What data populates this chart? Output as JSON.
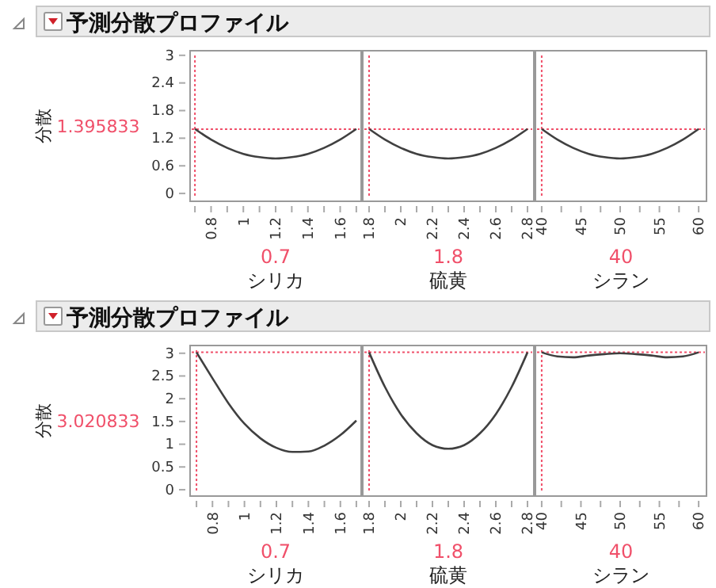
{
  "chart_data": [
    {
      "type": "line",
      "title": "予測分散プロファイル",
      "ylabel": "分散",
      "xlabel": "シリカ",
      "x": [
        0.7,
        0.8,
        0.9,
        1.0,
        1.1,
        1.2,
        1.3,
        1.4,
        1.5,
        1.6,
        1.7
      ],
      "values": [
        1.4,
        1.17,
        0.99,
        0.86,
        0.79,
        0.76,
        0.79,
        0.86,
        0.99,
        1.17,
        1.4
      ],
      "color": "#404040",
      "xlim": [
        0.67,
        1.73
      ],
      "xticks": [
        {
          "value": 0.7,
          "label": null
        },
        0.8,
        {
          "value": 0.9,
          "label": null
        },
        1,
        {
          "value": 1.1,
          "label": null
        },
        1.2,
        {
          "value": 1.3,
          "label": null
        },
        1.4,
        {
          "value": 1.5,
          "label": null
        },
        1.6,
        {
          "value": 1.7,
          "label": null
        }
      ],
      "ylim": [
        -0.17,
        3.1
      ],
      "yticks": [
        0,
        0.6,
        1.2,
        1.8,
        2.4,
        3
      ],
      "ref_lines": [
        {
          "axis": "x",
          "value": 0.7,
          "label": "0.7",
          "color": "#f0506a",
          "line_style": "dotted"
        },
        {
          "axis": "y",
          "value": 1.395833,
          "label": "1.395833",
          "color": "#f0506a",
          "line_style": "dotted"
        }
      ]
    },
    {
      "type": "line",
      "xlabel": "硫黄",
      "x": [
        1.8,
        1.9,
        2.0,
        2.1,
        2.2,
        2.3,
        2.4,
        2.5,
        2.6,
        2.7,
        2.8
      ],
      "values": [
        1.4,
        1.17,
        0.99,
        0.86,
        0.79,
        0.76,
        0.79,
        0.86,
        0.99,
        1.17,
        1.4
      ],
      "color": "#404040",
      "xlim": [
        1.76,
        2.84
      ],
      "xticks": [
        1.8,
        {
          "value": 1.9,
          "label": null
        },
        2,
        {
          "value": 2.1,
          "label": null
        },
        2.2,
        {
          "value": 2.3,
          "label": null
        },
        2.4,
        {
          "value": 2.5,
          "label": null
        },
        2.6,
        {
          "value": 2.7,
          "label": null
        },
        2.8
      ],
      "ylim": [
        -0.17,
        3.1
      ],
      "tick_labels": "x",
      "ref_lines": [
        {
          "axis": "x",
          "value": 1.8,
          "label": "1.8",
          "color": "#f0506a",
          "line_style": "dotted"
        },
        {
          "axis": "y",
          "value": 1.395833,
          "color": "#f0506a",
          "line_style": "dotted"
        }
      ]
    },
    {
      "type": "line",
      "xlabel": "シラン",
      "x": [
        40,
        42,
        44,
        46,
        48,
        50,
        52,
        54,
        56,
        58,
        60
      ],
      "values": [
        1.4,
        1.17,
        0.99,
        0.86,
        0.79,
        0.76,
        0.79,
        0.86,
        0.99,
        1.17,
        1.4
      ],
      "color": "#404040",
      "xlim": [
        39.2,
        61
      ],
      "xticks": [
        40,
        {
          "value": 42.5,
          "label": null
        },
        45,
        {
          "value": 47.5,
          "label": null
        },
        50,
        {
          "value": 52.5,
          "label": null
        },
        55,
        {
          "value": 57.5,
          "label": null
        },
        60
      ],
      "ylim": [
        -0.17,
        3.1
      ],
      "tick_labels": "x",
      "ref_lines": [
        {
          "axis": "x",
          "value": 40,
          "label": "40",
          "color": "#f0506a",
          "line_style": "dotted"
        },
        {
          "axis": "y",
          "value": 1.395833,
          "color": "#f0506a",
          "line_style": "dotted"
        }
      ]
    },
    {
      "type": "line",
      "title": "予測分散プロファイル",
      "ylabel": "分散",
      "xlabel": "シリカ",
      "x": [
        0.7,
        0.8,
        0.9,
        1.0,
        1.1,
        1.2,
        1.3,
        1.4,
        1.5,
        1.6,
        1.7
      ],
      "values": [
        3.02,
        2.45,
        1.9,
        1.45,
        1.13,
        0.92,
        0.83,
        0.84,
        0.97,
        1.2,
        1.52
      ],
      "color": "#404040",
      "xlim": [
        0.66,
        1.73
      ],
      "xticks": [
        {
          "value": 0.7,
          "label": null
        },
        0.8,
        {
          "value": 0.9,
          "label": null
        },
        1,
        {
          "value": 1.1,
          "label": null
        },
        1.2,
        {
          "value": 1.3,
          "label": null
        },
        1.4,
        {
          "value": 1.5,
          "label": null
        },
        1.6,
        {
          "value": 1.7,
          "label": null
        }
      ],
      "ylim": [
        -0.14,
        3.17
      ],
      "yticks": [
        0,
        0.5,
        1,
        1.5,
        2,
        2.5,
        3
      ],
      "ref_lines": [
        {
          "axis": "x",
          "value": 0.7,
          "label": "0.7",
          "color": "#f0506a",
          "line_style": "dotted"
        },
        {
          "axis": "y",
          "value": 3.020833,
          "label": "3.020833",
          "color": "#f0506a",
          "line_style": "dotted"
        }
      ]
    },
    {
      "type": "line",
      "xlabel": "硫黄",
      "x": [
        1.8,
        1.9,
        2.0,
        2.1,
        2.2,
        2.3,
        2.4,
        2.5,
        2.6,
        2.7,
        2.8
      ],
      "values": [
        3.02,
        2.26,
        1.66,
        1.24,
        0.98,
        0.9,
        0.98,
        1.24,
        1.66,
        2.26,
        3.02
      ],
      "color": "#404040",
      "xlim": [
        1.76,
        2.84
      ],
      "xticks": [
        1.8,
        {
          "value": 1.9,
          "label": null
        },
        2,
        {
          "value": 2.1,
          "label": null
        },
        2.2,
        {
          "value": 2.3,
          "label": null
        },
        2.4,
        {
          "value": 2.5,
          "label": null
        },
        2.6,
        {
          "value": 2.7,
          "label": null
        },
        2.8
      ],
      "ylim": [
        -0.14,
        3.17
      ],
      "tick_labels": "x",
      "ref_lines": [
        {
          "axis": "x",
          "value": 1.8,
          "label": "1.8",
          "color": "#f0506a",
          "line_style": "dotted"
        },
        {
          "axis": "y",
          "value": 3.020833,
          "color": "#f0506a",
          "line_style": "dotted"
        }
      ]
    },
    {
      "type": "line",
      "xlabel": "シラン",
      "x": [
        40,
        42,
        44,
        46,
        48,
        50,
        52,
        54,
        56,
        58,
        60
      ],
      "values": [
        3.02,
        2.93,
        2.91,
        2.95,
        2.98,
        3.0,
        2.98,
        2.95,
        2.91,
        2.93,
        3.02
      ],
      "color": "#404040",
      "xlim": [
        39.2,
        61
      ],
      "xticks": [
        40,
        {
          "value": 42.5,
          "label": null
        },
        45,
        {
          "value": 47.5,
          "label": null
        },
        50,
        {
          "value": 52.5,
          "label": null
        },
        55,
        {
          "value": 57.5,
          "label": null
        },
        60
      ],
      "ylim": [
        -0.14,
        3.17
      ],
      "tick_labels": "x",
      "ref_lines": [
        {
          "axis": "x",
          "value": 40,
          "label": "40",
          "color": "#f0506a",
          "line_style": "dotted"
        },
        {
          "axis": "y",
          "value": 3.020833,
          "color": "#f0506a",
          "line_style": "dotted"
        }
      ]
    }
  ]
}
